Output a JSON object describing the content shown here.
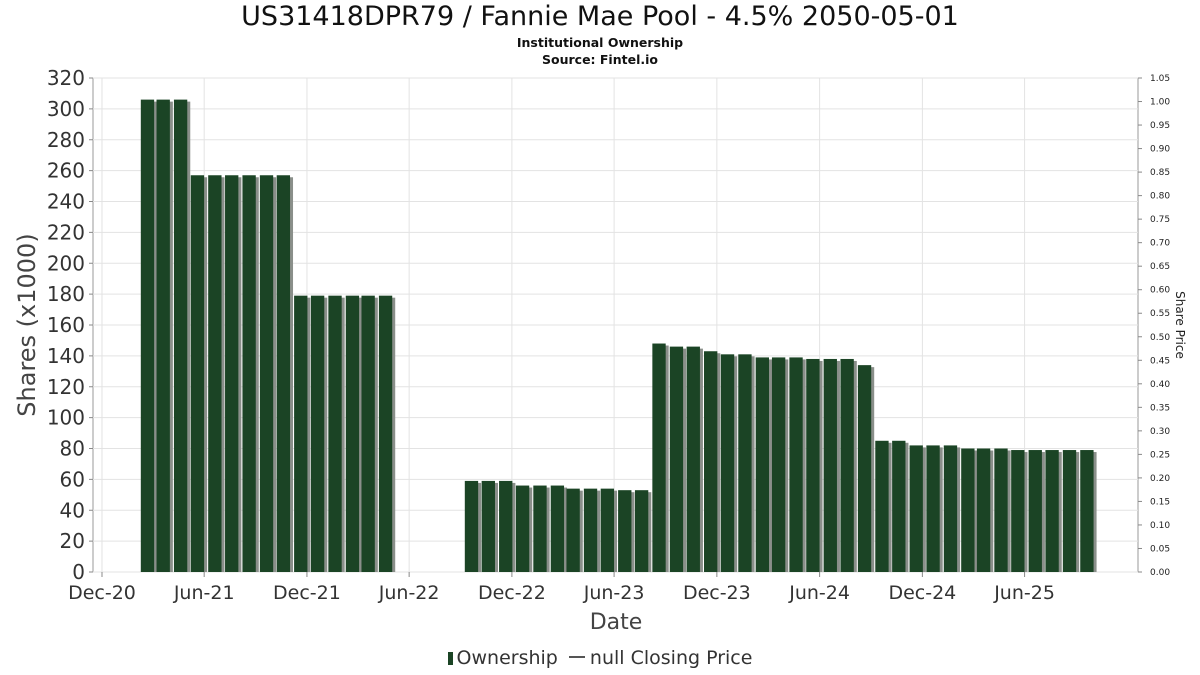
{
  "chart_data": {
    "type": "bar",
    "title": "US31418DPR79 / Fannie Mae Pool - 4.5% 2050-05-01",
    "subtitle_lines": [
      "Institutional Ownership",
      "Source: Fintel.io"
    ],
    "xlabel": "Date",
    "ylabel": "Shares (x1000)",
    "y2label": "Share Price",
    "ylim": [
      0,
      320
    ],
    "yticks": [
      0,
      20,
      40,
      60,
      80,
      100,
      120,
      140,
      160,
      180,
      200,
      220,
      240,
      260,
      280,
      300,
      320
    ],
    "y2lim": [
      0,
      1.05
    ],
    "y2ticks": [
      "0.00",
      "0.05",
      "0.10",
      "0.15",
      "0.20",
      "0.25",
      "0.30",
      "0.35",
      "0.40",
      "0.45",
      "0.50",
      "0.55",
      "0.60",
      "0.65",
      "0.70",
      "0.75",
      "0.80",
      "0.85",
      "0.90",
      "0.95",
      "1.00",
      "1.05"
    ],
    "xlim": [
      "2020-11-15",
      "2025-12-20"
    ],
    "xticks": [
      {
        "date": "2020-12-01",
        "label": "Dec-20"
      },
      {
        "date": "2021-06-01",
        "label": "Jun-21"
      },
      {
        "date": "2021-12-01",
        "label": "Dec-21"
      },
      {
        "date": "2022-06-01",
        "label": "Jun-22"
      },
      {
        "date": "2022-12-01",
        "label": "Dec-22"
      },
      {
        "date": "2023-06-01",
        "label": "Jun-23"
      },
      {
        "date": "2023-12-01",
        "label": "Dec-23"
      },
      {
        "date": "2024-06-01",
        "label": "Jun-24"
      },
      {
        "date": "2024-12-01",
        "label": "Dec-24"
      },
      {
        "date": "2025-06-01",
        "label": "Jun-25"
      }
    ],
    "grid": true,
    "legend_position": "bottom",
    "series": [
      {
        "name": "Ownership",
        "color": "#1b4425",
        "points": [
          {
            "date": "2021-02-20",
            "value": 306
          },
          {
            "date": "2021-03-20",
            "value": 306
          },
          {
            "date": "2021-04-20",
            "value": 306
          },
          {
            "date": "2021-05-20",
            "value": 257
          },
          {
            "date": "2021-06-20",
            "value": 257
          },
          {
            "date": "2021-07-20",
            "value": 257
          },
          {
            "date": "2021-08-20",
            "value": 257
          },
          {
            "date": "2021-09-20",
            "value": 257
          },
          {
            "date": "2021-10-20",
            "value": 257
          },
          {
            "date": "2021-11-20",
            "value": 179
          },
          {
            "date": "2021-12-20",
            "value": 179
          },
          {
            "date": "2022-01-20",
            "value": 179
          },
          {
            "date": "2022-02-20",
            "value": 179
          },
          {
            "date": "2022-03-20",
            "value": 179
          },
          {
            "date": "2022-04-20",
            "value": 179
          },
          {
            "date": "2022-09-20",
            "value": 59
          },
          {
            "date": "2022-10-20",
            "value": 59
          },
          {
            "date": "2022-11-20",
            "value": 59
          },
          {
            "date": "2022-12-20",
            "value": 56
          },
          {
            "date": "2023-01-20",
            "value": 56
          },
          {
            "date": "2023-02-20",
            "value": 56
          },
          {
            "date": "2023-03-20",
            "value": 54
          },
          {
            "date": "2023-04-20",
            "value": 54
          },
          {
            "date": "2023-05-20",
            "value": 54
          },
          {
            "date": "2023-06-20",
            "value": 53
          },
          {
            "date": "2023-07-20",
            "value": 53
          },
          {
            "date": "2023-08-20",
            "value": 148
          },
          {
            "date": "2023-09-20",
            "value": 146
          },
          {
            "date": "2023-10-20",
            "value": 146
          },
          {
            "date": "2023-11-20",
            "value": 143
          },
          {
            "date": "2023-12-20",
            "value": 141
          },
          {
            "date": "2024-01-20",
            "value": 141
          },
          {
            "date": "2024-02-20",
            "value": 139
          },
          {
            "date": "2024-03-20",
            "value": 139
          },
          {
            "date": "2024-04-20",
            "value": 139
          },
          {
            "date": "2024-05-20",
            "value": 138
          },
          {
            "date": "2024-06-20",
            "value": 138
          },
          {
            "date": "2024-07-20",
            "value": 138
          },
          {
            "date": "2024-08-20",
            "value": 134
          },
          {
            "date": "2024-09-20",
            "value": 85
          },
          {
            "date": "2024-10-20",
            "value": 85
          },
          {
            "date": "2024-11-20",
            "value": 82
          },
          {
            "date": "2024-12-20",
            "value": 82
          },
          {
            "date": "2025-01-20",
            "value": 82
          },
          {
            "date": "2025-02-20",
            "value": 80
          },
          {
            "date": "2025-03-20",
            "value": 80
          },
          {
            "date": "2025-04-20",
            "value": 80
          },
          {
            "date": "2025-05-20",
            "value": 79
          },
          {
            "date": "2025-06-20",
            "value": 79
          },
          {
            "date": "2025-07-20",
            "value": 79
          },
          {
            "date": "2025-08-20",
            "value": 79
          },
          {
            "date": "2025-09-20",
            "value": 79
          }
        ]
      }
    ],
    "legend": [
      {
        "label": "Ownership",
        "marker": "bar",
        "color": "#1b4425"
      },
      {
        "label": "null Closing Price",
        "marker": "line",
        "color": "#555555"
      }
    ]
  }
}
